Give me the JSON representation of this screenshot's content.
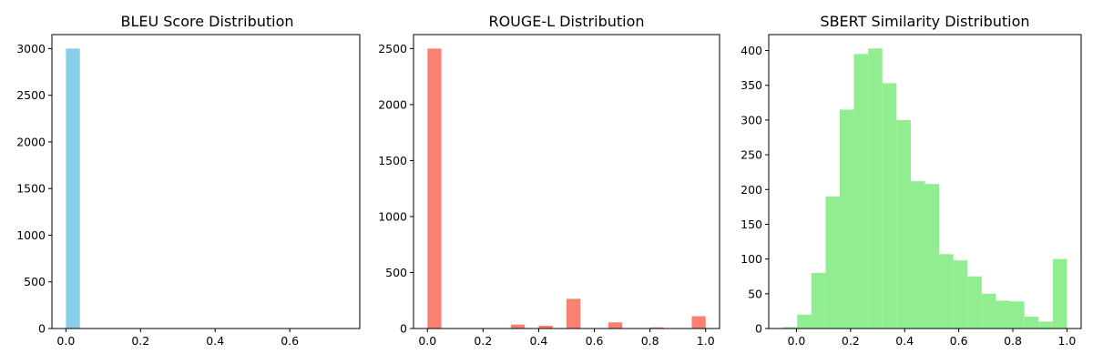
{
  "chart_data": [
    {
      "type": "bar",
      "title": "BLEU Score Distribution",
      "xlabel": "",
      "ylabel": "",
      "color": "#87CEEB",
      "xlim": [
        -0.0375,
        0.7875
      ],
      "ylim": [
        0,
        3150
      ],
      "xticks": [
        0.0,
        0.2,
        0.4,
        0.6
      ],
      "xtick_labels": [
        "0.0",
        "0.2",
        "0.4",
        "0.6"
      ],
      "yticks": [
        0,
        500,
        1000,
        1500,
        2000,
        2500,
        3000
      ],
      "ytick_labels": [
        "0",
        "500",
        "1000",
        "1500",
        "2000",
        "2500",
        "3000"
      ],
      "bin_edges": [
        0.0,
        0.0375,
        0.075,
        0.1125,
        0.15,
        0.1875,
        0.225,
        0.2625,
        0.3,
        0.3375,
        0.375,
        0.4125,
        0.45,
        0.4875,
        0.525,
        0.5625,
        0.6,
        0.6375,
        0.675,
        0.7125,
        0.75
      ],
      "values": [
        3000,
        0,
        0,
        0,
        0,
        0,
        0,
        0,
        0,
        0,
        0,
        0,
        0,
        0,
        0,
        0,
        0,
        0,
        0,
        0
      ],
      "grid": false
    },
    {
      "type": "bar",
      "title": "ROUGE-L Distribution",
      "xlabel": "",
      "ylabel": "",
      "color": "#FA8072",
      "xlim": [
        -0.05,
        1.05
      ],
      "ylim": [
        0,
        2625
      ],
      "xticks": [
        0.0,
        0.2,
        0.4,
        0.6,
        0.8,
        1.0
      ],
      "xtick_labels": [
        "0.0",
        "0.2",
        "0.4",
        "0.6",
        "0.8",
        "1.0"
      ],
      "yticks": [
        0,
        500,
        1000,
        1500,
        2000,
        2500
      ],
      "ytick_labels": [
        "0",
        "500",
        "1000",
        "1500",
        "2000",
        "2500"
      ],
      "bin_edges": [
        0.0,
        0.05,
        0.1,
        0.15,
        0.2,
        0.25,
        0.3,
        0.35,
        0.4,
        0.45,
        0.5,
        0.55,
        0.6,
        0.65,
        0.7,
        0.75,
        0.8,
        0.85,
        0.9,
        0.95,
        1.0
      ],
      "values": [
        2500,
        0,
        0,
        0,
        0,
        0,
        35,
        0,
        25,
        0,
        265,
        0,
        0,
        55,
        0,
        0,
        10,
        0,
        0,
        110
      ],
      "grid": false
    },
    {
      "type": "bar",
      "title": "SBERT Similarity Distribution",
      "xlabel": "",
      "ylabel": "",
      "color": "#90EE90",
      "xlim": [
        -0.1025,
        1.0525
      ],
      "ylim": [
        0,
        423
      ],
      "xticks": [
        0.0,
        0.2,
        0.4,
        0.6,
        0.8,
        1.0
      ],
      "xtick_labels": [
        "0.0",
        "0.2",
        "0.4",
        "0.6",
        "0.8",
        "1.0"
      ],
      "yticks": [
        0,
        50,
        100,
        150,
        200,
        250,
        300,
        350,
        400
      ],
      "ytick_labels": [
        "0",
        "50",
        "100",
        "150",
        "200",
        "250",
        "300",
        "350",
        "400"
      ],
      "bin_edges": [
        -0.05,
        0.0025,
        0.055,
        0.1075,
        0.16,
        0.2125,
        0.265,
        0.3175,
        0.37,
        0.4225,
        0.475,
        0.5275,
        0.58,
        0.6325,
        0.685,
        0.7375,
        0.79,
        0.8425,
        0.895,
        0.9475,
        1.0
      ],
      "values": [
        2,
        20,
        80,
        190,
        315,
        395,
        403,
        353,
        300,
        212,
        208,
        107,
        98,
        75,
        50,
        40,
        39,
        17,
        10,
        100
      ],
      "grid": false
    }
  ]
}
